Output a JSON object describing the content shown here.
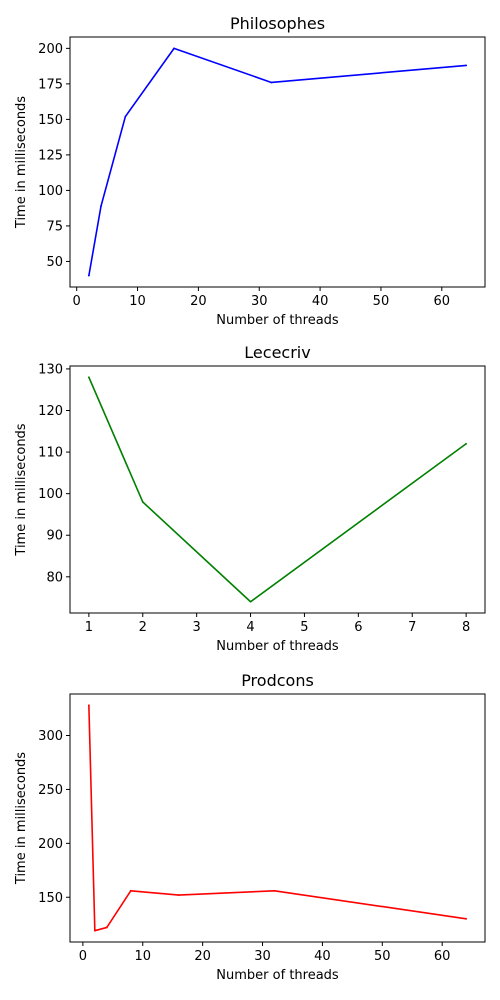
{
  "chart_data": [
    {
      "type": "line",
      "title": "Philosophes",
      "xlabel": "Number of threads",
      "ylabel": "Time in milliseconds",
      "xlim": [
        -1.1,
        67.1
      ],
      "ylim": [
        32,
        208
      ],
      "xticks": [
        0,
        10,
        20,
        30,
        40,
        50,
        60
      ],
      "yticks": [
        50,
        75,
        100,
        125,
        150,
        175,
        200
      ],
      "grid": false,
      "series": [
        {
          "color": "#0000ff",
          "x": [
            2,
            4,
            8,
            16,
            32,
            64
          ],
          "y": [
            40,
            89,
            152,
            200,
            176,
            188
          ]
        }
      ]
    },
    {
      "type": "line",
      "title": "Lececriv",
      "xlabel": "Number of threads",
      "ylabel": "Time in milliseconds",
      "xlim": [
        0.65,
        8.35
      ],
      "ylim": [
        71.3,
        130.7
      ],
      "xticks": [
        1,
        2,
        3,
        4,
        5,
        6,
        7,
        8
      ],
      "yticks": [
        80,
        90,
        100,
        110,
        120,
        130
      ],
      "grid": false,
      "series": [
        {
          "color": "#008000",
          "x": [
            1,
            2,
            4,
            8
          ],
          "y": [
            128,
            98,
            74,
            112
          ]
        }
      ]
    },
    {
      "type": "line",
      "title": "Prodcons",
      "xlabel": "Number of threads",
      "ylabel": "Time in milliseconds",
      "xlim": [
        -2.15,
        67.15
      ],
      "ylim": [
        108.5,
        338.5
      ],
      "xticks": [
        0,
        10,
        20,
        30,
        40,
        50,
        60
      ],
      "yticks": [
        150,
        200,
        250,
        300
      ],
      "grid": false,
      "series": [
        {
          "color": "#ff0000",
          "x": [
            1,
            2,
            4,
            8,
            16,
            32,
            64
          ],
          "y": [
            328,
            119,
            122,
            156,
            152,
            156,
            130
          ]
        }
      ]
    }
  ]
}
